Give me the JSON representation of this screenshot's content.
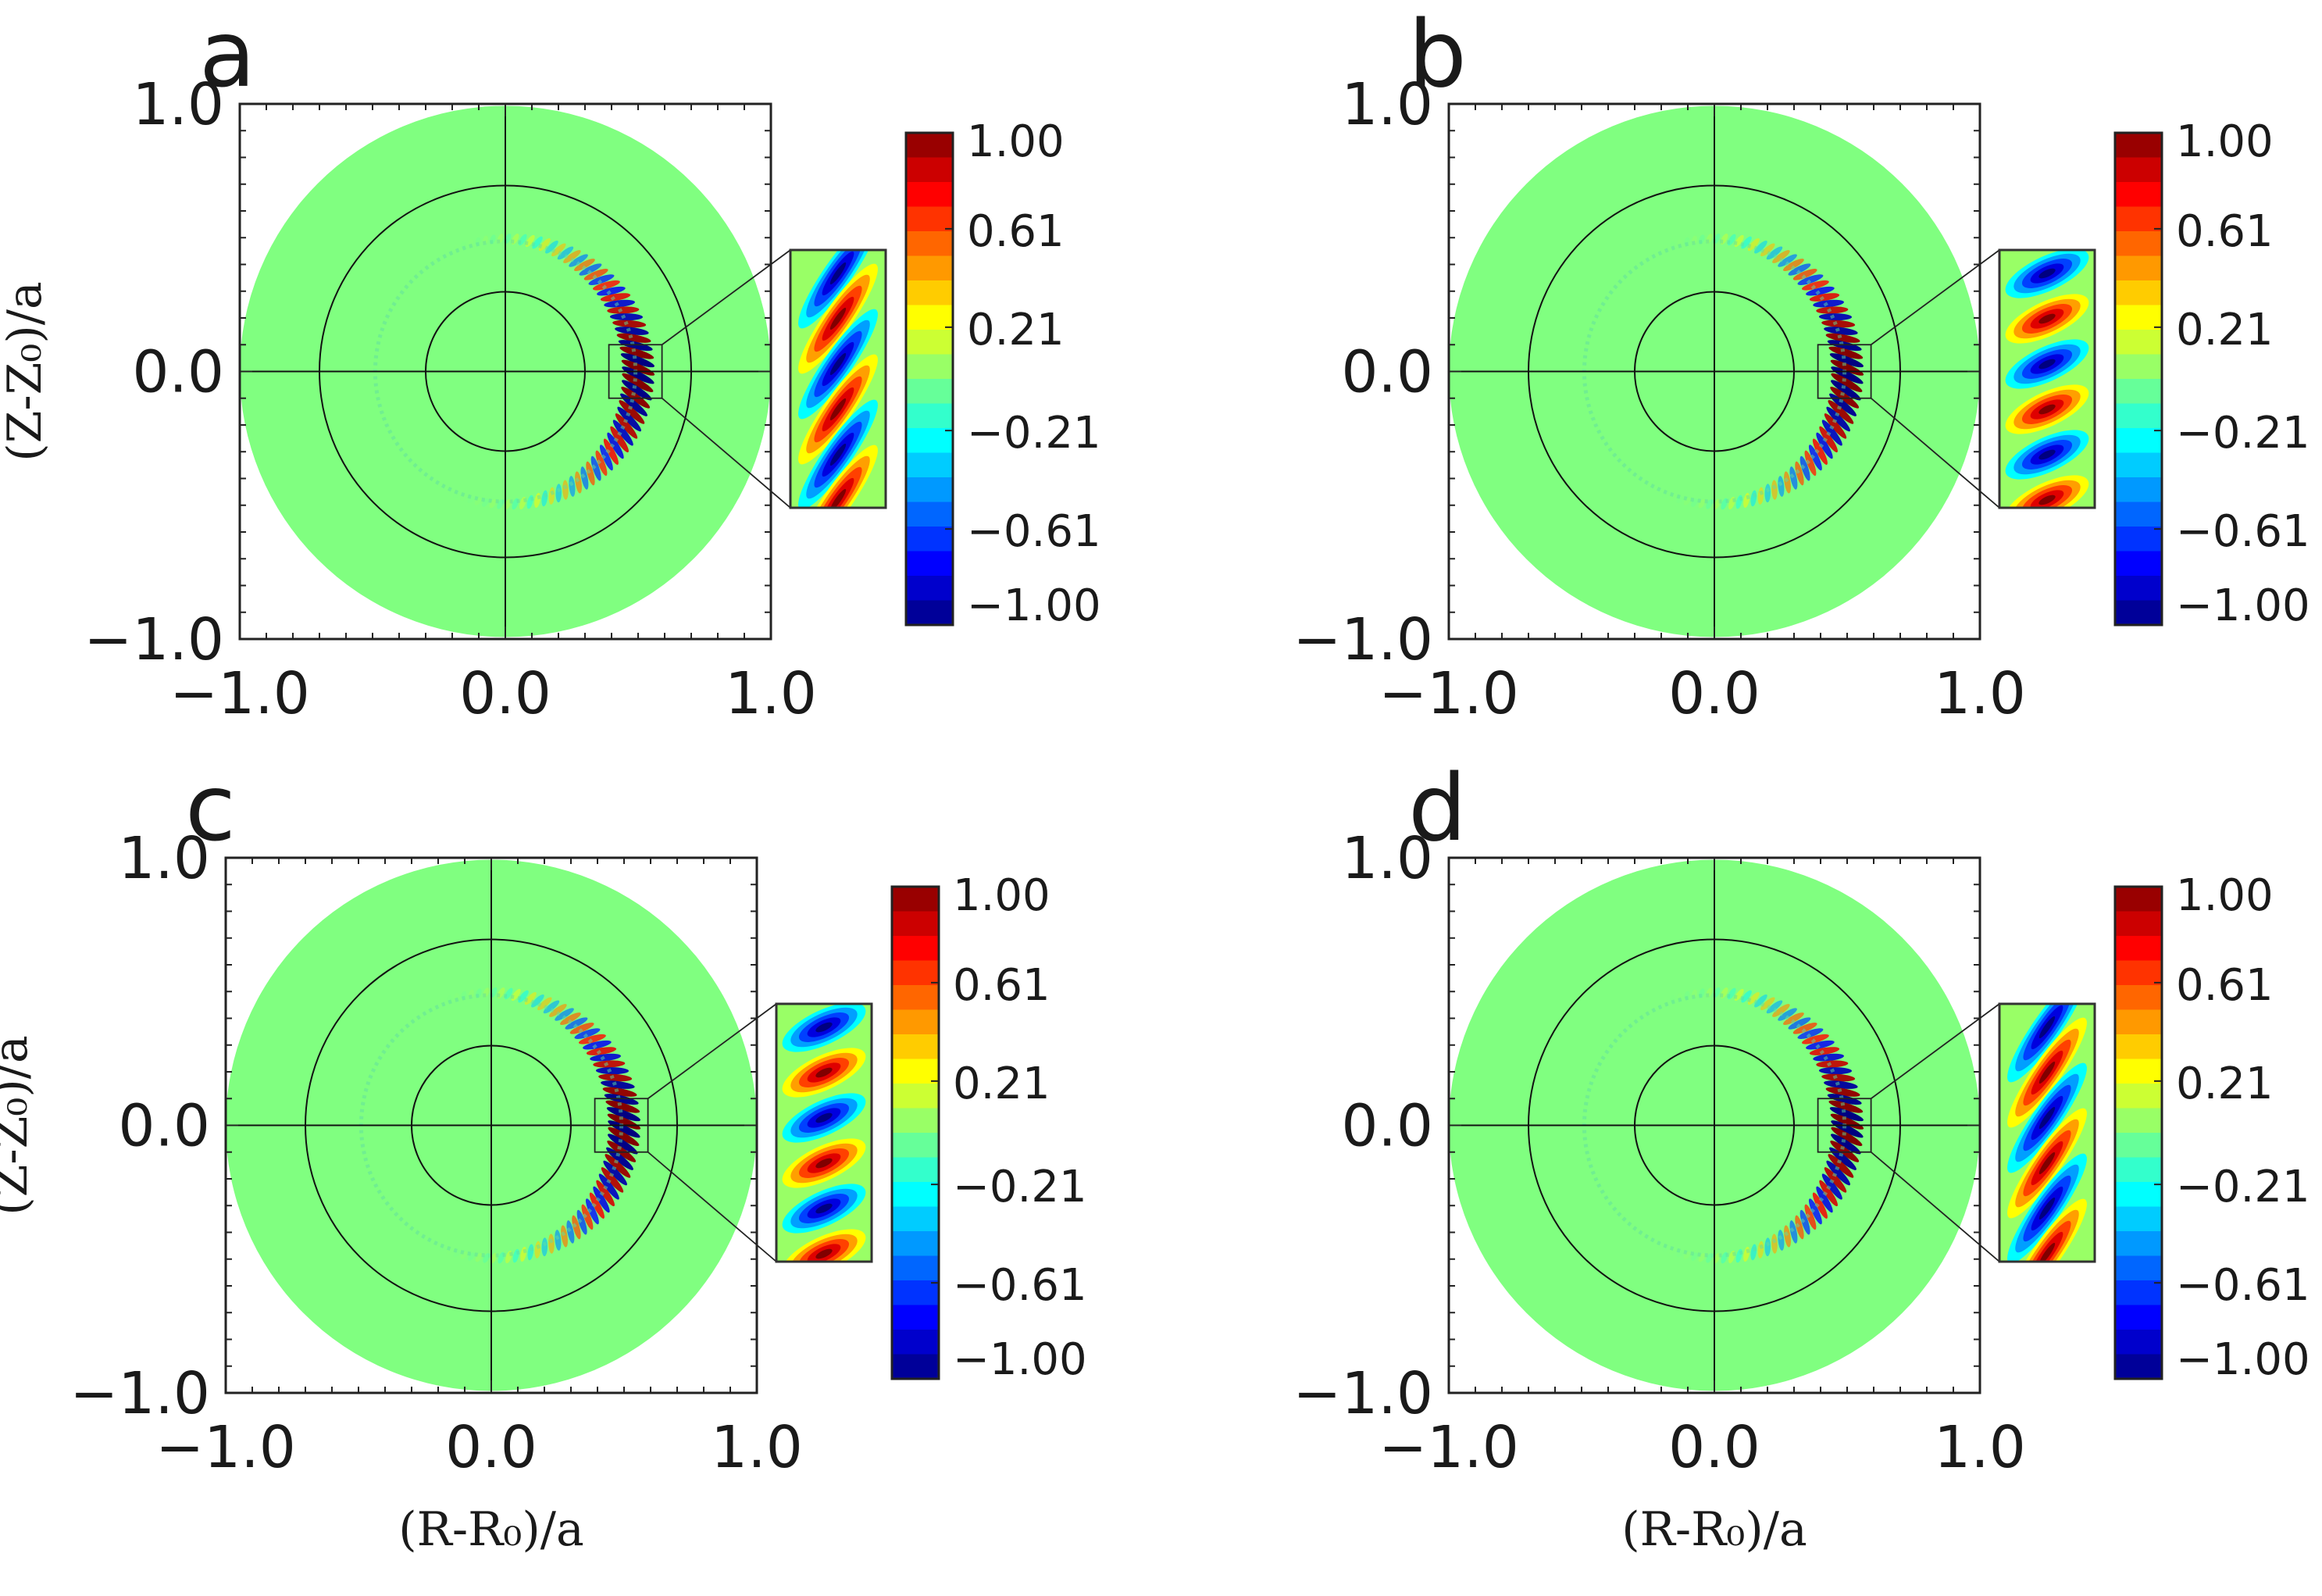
{
  "figure": {
    "panels": [
      {
        "label": "a",
        "show_ylabel": true,
        "show_xlabel": false,
        "inset_pattern": "diagonal"
      },
      {
        "label": "b",
        "show_ylabel": false,
        "show_xlabel": false,
        "inset_pattern": "checker"
      },
      {
        "label": "c",
        "show_ylabel": true,
        "show_xlabel": true,
        "inset_pattern": "checker"
      },
      {
        "label": "d",
        "show_ylabel": false,
        "show_xlabel": true,
        "inset_pattern": "diagonal"
      }
    ],
    "xlabel": "(R-R₀)/a",
    "ylabel": "(Z-Z₀)/a",
    "xticks": [
      "−1.0",
      "0.0",
      "1.0"
    ],
    "yticks": [
      "1.0",
      "0.0",
      "−1.0"
    ],
    "colorbar_ticks": [
      "1.00",
      "0.61",
      "0.21",
      "−0.21",
      "−0.61",
      "−1.00"
    ],
    "colorbar_tick_values": [
      1.0,
      0.61,
      0.21,
      -0.21,
      -0.61,
      -1.0
    ],
    "colorbar_levels": 20,
    "colors": {
      "background_field": "#80ff80",
      "axis": "#1a1a1a"
    }
  },
  "chart_data": [
    {
      "type": "heatmap",
      "panel": "a",
      "xlabel": "",
      "ylabel": "(Z-Z₀)/a",
      "xlim": [
        -1.0,
        1.0
      ],
      "ylim": [
        -1.0,
        1.0
      ],
      "colorbar": {
        "min": -1.0,
        "max": 1.0,
        "ticks": [
          1.0,
          0.61,
          0.21,
          -0.21,
          -0.61,
          -1.0
        ]
      },
      "flux_circles_r": [
        0.3,
        0.7
      ],
      "mode_radius": 0.5,
      "inset_region": {
        "x": [
          0.39,
          0.59
        ],
        "y": [
          -0.1,
          0.1
        ]
      }
    },
    {
      "type": "heatmap",
      "panel": "b",
      "xlabel": "",
      "ylabel": "",
      "xlim": [
        -1.0,
        1.0
      ],
      "ylim": [
        -1.0,
        1.0
      ],
      "colorbar": {
        "min": -1.0,
        "max": 1.0,
        "ticks": [
          1.0,
          0.61,
          0.21,
          -0.21,
          -0.61,
          -1.0
        ]
      },
      "flux_circles_r": [
        0.3,
        0.7
      ],
      "mode_radius": 0.5,
      "inset_region": {
        "x": [
          0.39,
          0.59
        ],
        "y": [
          -0.1,
          0.1
        ]
      }
    },
    {
      "type": "heatmap",
      "panel": "c",
      "xlabel": "(R-R₀)/a",
      "ylabel": "(Z-Z₀)/a",
      "xlim": [
        -1.0,
        1.0
      ],
      "ylim": [
        -1.0,
        1.0
      ],
      "colorbar": {
        "min": -1.0,
        "max": 1.0,
        "ticks": [
          1.0,
          0.61,
          0.21,
          -0.21,
          -0.61,
          -1.0
        ]
      },
      "flux_circles_r": [
        0.3,
        0.7
      ],
      "mode_radius": 0.5,
      "inset_region": {
        "x": [
          0.39,
          0.59
        ],
        "y": [
          -0.1,
          0.1
        ]
      }
    },
    {
      "type": "heatmap",
      "panel": "d",
      "xlabel": "(R-R₀)/a",
      "ylabel": "",
      "xlim": [
        -1.0,
        1.0
      ],
      "ylim": [
        -1.0,
        1.0
      ],
      "colorbar": {
        "min": -1.0,
        "max": 1.0,
        "ticks": [
          1.0,
          0.61,
          0.21,
          -0.21,
          -0.61,
          -1.0
        ]
      },
      "flux_circles_r": [
        0.3,
        0.7
      ],
      "mode_radius": 0.5,
      "inset_region": {
        "x": [
          0.39,
          0.59
        ],
        "y": [
          -0.1,
          0.1
        ]
      }
    }
  ]
}
